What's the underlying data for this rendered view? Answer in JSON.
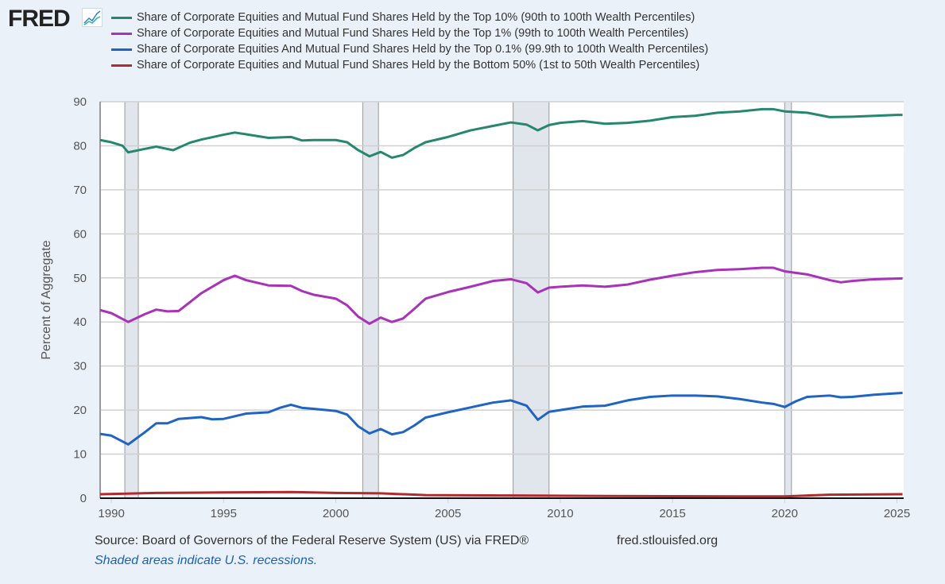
{
  "logo": "FRED",
  "chart_data": {
    "type": "line",
    "ylabel": "Percent of Aggregate",
    "ylim": [
      0,
      90
    ],
    "xlim": [
      1989.5,
      2025.3
    ],
    "yticks": [
      "0",
      "10",
      "20",
      "30",
      "40",
      "50",
      "60",
      "70",
      "80",
      "90"
    ],
    "xticks": [
      "1990",
      "1995",
      "2000",
      "2005",
      "2010",
      "2015",
      "2020",
      "2025"
    ],
    "grid": true,
    "legend_position": "top",
    "recessions": [
      [
        1990.6,
        1991.2
      ],
      [
        2001.2,
        2001.9
      ],
      [
        2007.9,
        2009.5
      ],
      [
        2020.0,
        2020.3
      ]
    ],
    "series": [
      {
        "name": "Share of Corporate Equities and Mutual Fund Shares Held by the Top 10% (90th to 100th Wealth Percentiles)",
        "color": "#26876f",
        "x": [
          1989.5,
          1990,
          1990.5,
          1990.75,
          1991.5,
          1992,
          1992.75,
          1993.5,
          1994,
          1995,
          1995.5,
          1996,
          1997,
          1998,
          1998.5,
          1999,
          2000,
          2000.5,
          2001,
          2001.5,
          2002,
          2002.5,
          2003,
          2003.5,
          2004,
          2005,
          2006,
          2007,
          2007.8,
          2008.5,
          2009,
          2009.5,
          2010,
          2011,
          2012,
          2013,
          2014,
          2015,
          2016,
          2017,
          2018,
          2019,
          2019.5,
          2020,
          2021,
          2022,
          2023,
          2024,
          2025,
          2025.25
        ],
        "y": [
          81.3,
          80.8,
          80,
          78.5,
          79.3,
          79.8,
          79,
          80.7,
          81.4,
          82.5,
          83,
          82.6,
          81.8,
          82,
          81.2,
          81.3,
          81.3,
          80.8,
          79,
          77.6,
          78.6,
          77.3,
          77.9,
          79.5,
          80.8,
          82,
          83.5,
          84.5,
          85.3,
          84.8,
          83.5,
          84.7,
          85.2,
          85.6,
          85,
          85.2,
          85.7,
          86.5,
          86.8,
          87.5,
          87.8,
          88.3,
          88.3,
          87.8,
          87.5,
          86.5,
          86.6,
          86.8,
          87,
          87
        ]
      },
      {
        "name": "Share of Corporate Equities and Mutual Fund Shares Held by the Top 1% (99th to 100th Wealth Percentiles)",
        "color": "#a832b8",
        "x": [
          1989.5,
          1990,
          1990.75,
          1991.5,
          1992,
          1992.5,
          1993,
          1993.5,
          1994,
          1995,
          1995.5,
          1996,
          1997,
          1998,
          1998.5,
          1999,
          2000,
          2000.5,
          2001,
          2001.5,
          2002,
          2002.5,
          2003,
          2003.5,
          2004,
          2005,
          2006,
          2007,
          2007.8,
          2008.5,
          2009,
          2009.5,
          2010,
          2011,
          2012,
          2013,
          2014,
          2015,
          2016,
          2017,
          2018,
          2019,
          2019.5,
          2020,
          2021,
          2022,
          2022.5,
          2023,
          2024,
          2025.25
        ],
        "y": [
          42.7,
          42,
          40,
          41.8,
          42.8,
          42.4,
          42.5,
          44.5,
          46.5,
          49.5,
          50.5,
          49.5,
          48.3,
          48.2,
          47,
          46.2,
          45.3,
          43.8,
          41.2,
          39.6,
          41,
          40,
          40.8,
          43,
          45.3,
          46.8,
          48,
          49.3,
          49.7,
          48.8,
          46.7,
          47.8,
          48,
          48.3,
          48,
          48.5,
          49.6,
          50.5,
          51.3,
          51.8,
          52,
          52.3,
          52.3,
          51.5,
          50.8,
          49.5,
          49,
          49.3,
          49.7,
          49.9
        ]
      },
      {
        "name": "Share of Corporate Equities And Mutual Fund Shares Held by the Top 0.1% (99.9th to 100th Wealth Percentiles)",
        "color": "#1f64c2",
        "x": [
          1989.5,
          1990,
          1990.75,
          1991.5,
          1992,
          1992.5,
          1993,
          1994,
          1994.5,
          1995,
          1996,
          1997,
          1997.5,
          1998,
          1998.5,
          1999,
          2000,
          2000.5,
          2001,
          2001.5,
          2002,
          2002.5,
          2003,
          2003.5,
          2004,
          2005,
          2006,
          2007,
          2007.8,
          2008.5,
          2009,
          2009.5,
          2010,
          2011,
          2012,
          2013,
          2014,
          2015,
          2016,
          2017,
          2018,
          2019,
          2019.5,
          2020,
          2020.5,
          2021,
          2022,
          2022.5,
          2023,
          2024,
          2025.25
        ],
        "y": [
          14.6,
          14.2,
          12.2,
          15,
          17,
          17,
          18,
          18.4,
          17.9,
          18,
          19.2,
          19.5,
          20.5,
          21.2,
          20.5,
          20.3,
          19.8,
          19,
          16.3,
          14.7,
          15.7,
          14.5,
          15,
          16.5,
          18.3,
          19.5,
          20.6,
          21.7,
          22.2,
          21,
          17.8,
          19.6,
          20,
          20.8,
          21,
          22.2,
          23,
          23.3,
          23.3,
          23.1,
          22.5,
          21.7,
          21.4,
          20.7,
          22,
          23,
          23.3,
          22.9,
          23,
          23.5,
          23.9
        ]
      },
      {
        "name": "Share of Corporate Equities and Mutual Fund Shares Held by the Bottom 50% (1st to 50th Wealth Percentiles)",
        "color": "#b2292e",
        "x": [
          1989.5,
          1992,
          1995,
          1998,
          2000,
          2002,
          2004,
          2008,
          2012,
          2018,
          2020,
          2022,
          2025.25
        ],
        "y": [
          0.9,
          1.2,
          1.3,
          1.4,
          1.2,
          1.1,
          0.7,
          0.6,
          0.5,
          0.4,
          0.4,
          0.8,
          0.9
        ]
      }
    ]
  },
  "footer": {
    "source": "Source: Board of Governors of the Federal Reserve System (US) via FRED®",
    "site": "fred.stlouisfed.org",
    "note": "Shaded areas indicate U.S. recessions."
  }
}
